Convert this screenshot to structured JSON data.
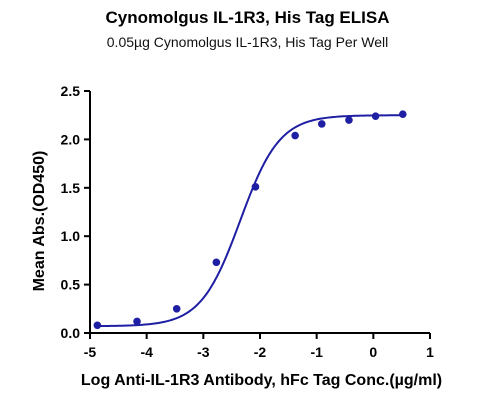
{
  "chart_data": {
    "type": "scatter",
    "title": "Cynomolgus IL-1R3, His Tag ELISA",
    "subtitle": "0.05µg Cynomolgus IL-1R3, His Tag Per Well",
    "xlabel": "Log Anti-IL-1R3 Antibody, hFc Tag Conc.(µg/ml)",
    "ylabel": "Mean Abs.(OD450)",
    "xlim": [
      -5,
      1
    ],
    "ylim": [
      0,
      2.5
    ],
    "xticks": [
      -5,
      -4,
      -3,
      -2,
      -1,
      0,
      1
    ],
    "yticks": [
      0.0,
      0.5,
      1.0,
      1.5,
      2.0,
      2.5
    ],
    "xtick_labels": [
      "-5",
      "-4",
      "-3",
      "-2",
      "-1",
      "0",
      "1"
    ],
    "ytick_labels": [
      "0.0",
      "0.5",
      "1.0",
      "1.5",
      "2.0",
      "2.5"
    ],
    "grid": false,
    "legend": "none",
    "color": "#1f1fa3",
    "series": [
      {
        "points_x": [
          -4.87,
          -4.17,
          -3.47,
          -2.77,
          -2.08,
          -1.38,
          -0.91,
          -0.43,
          0.04,
          0.52
        ],
        "points_y": [
          0.08,
          0.12,
          0.25,
          0.73,
          1.51,
          2.04,
          2.16,
          2.2,
          2.24,
          2.26
        ],
        "fit": {
          "model": "4PL",
          "bottom": 0.07,
          "top": 2.25,
          "log_ec50": -2.35,
          "hill": 1.25,
          "x_range": [
            -4.87,
            0.52
          ]
        }
      }
    ]
  }
}
